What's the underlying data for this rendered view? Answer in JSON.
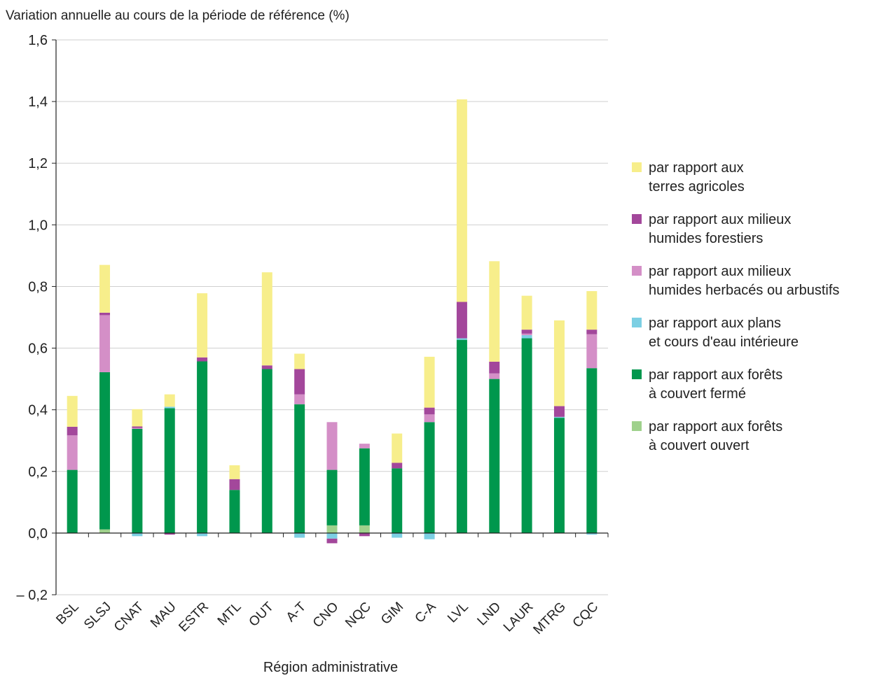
{
  "chart_data": {
    "type": "bar",
    "stacked": true,
    "title": "",
    "ylabel": "Variation annuelle au cours de la période de référence (%)",
    "xlabel": "Région administrative",
    "ylim": [
      -0.2,
      1.6
    ],
    "yticks": [
      -0.2,
      0.0,
      0.2,
      0.4,
      0.6,
      0.8,
      1.0,
      1.2,
      1.4,
      1.6
    ],
    "ytick_labels": [
      "– 0,2",
      "0,0",
      "0,2",
      "0,4",
      "0,6",
      "0,8",
      "1,0",
      "1,2",
      "1,4",
      "1,6"
    ],
    "grid": true,
    "legend_position": "right",
    "categories": [
      "BSL",
      "SLSJ",
      "CNAT",
      "MAU",
      "ESTR",
      "MTL",
      "OUT",
      "A-T",
      "CNO",
      "NQC",
      "GIM",
      "C-A",
      "LVL",
      "LND",
      "LAUR",
      "MTRG",
      "CQC"
    ],
    "series": [
      {
        "name": "par rapport aux forêts à couvert ouvert",
        "legend_lines": [
          "par rapport aux forêts",
          "à couvert ouvert"
        ],
        "color": "#9fd18c",
        "values": [
          0,
          0.012,
          0,
          0,
          0,
          0,
          0,
          0,
          0.025,
          0.025,
          0,
          0,
          0,
          0,
          0,
          0,
          0
        ]
      },
      {
        "name": "par rapport aux forêts à couvert fermé",
        "legend_lines": [
          "par rapport aux forêts",
          "à couvert fermé"
        ],
        "color": "#00974d",
        "values": [
          0.205,
          0.51,
          0.338,
          0.405,
          0.557,
          0.14,
          0.532,
          0.418,
          0.18,
          0.25,
          0.21,
          0.36,
          0.627,
          0.5,
          0.632,
          0.374,
          0.535
        ]
      },
      {
        "name": "par rapport aux plans et cours d'eau intérieure",
        "legend_lines": [
          "par rapport aux plans",
          "et cours d'eau intérieure"
        ],
        "color": "#7ccfe3",
        "values": [
          0,
          0,
          -0.01,
          0.005,
          -0.01,
          0,
          0,
          -0.015,
          -0.018,
          0,
          -0.015,
          -0.02,
          0.005,
          0,
          0.01,
          0.003,
          -0.005
        ]
      },
      {
        "name": "par rapport aux milieux humides herbacés ou arbustifs",
        "legend_lines": [
          "par rapport aux milieux",
          "humides herbacés ou arbustifs"
        ],
        "color": "#d48fc7",
        "values": [
          0.112,
          0.185,
          0.003,
          0,
          0,
          0,
          0,
          0.032,
          0.155,
          0.015,
          0,
          0.025,
          0,
          0.018,
          0.005,
          0,
          0.11
        ]
      },
      {
        "name": "par rapport aux milieux humides forestiers",
        "legend_lines": [
          "par rapport aux milieux",
          "humides forestiers"
        ],
        "color": "#a3479b",
        "values": [
          0.028,
          0.008,
          0.005,
          -0.005,
          0.013,
          0.035,
          0.012,
          0.082,
          -0.015,
          -0.01,
          0.018,
          0.022,
          0.118,
          0.038,
          0.013,
          0.035,
          0.015
        ]
      },
      {
        "name": "par rapport aux terres agricoles",
        "legend_lines": [
          "par rapport aux",
          "terres agricoles"
        ],
        "color": "#f7ee8b",
        "values": [
          0.1,
          0.155,
          0.056,
          0.04,
          0.208,
          0.045,
          0.302,
          0.05,
          0,
          0,
          0.095,
          0.165,
          0.657,
          0.326,
          0.11,
          0.278,
          0.125
        ]
      }
    ]
  }
}
